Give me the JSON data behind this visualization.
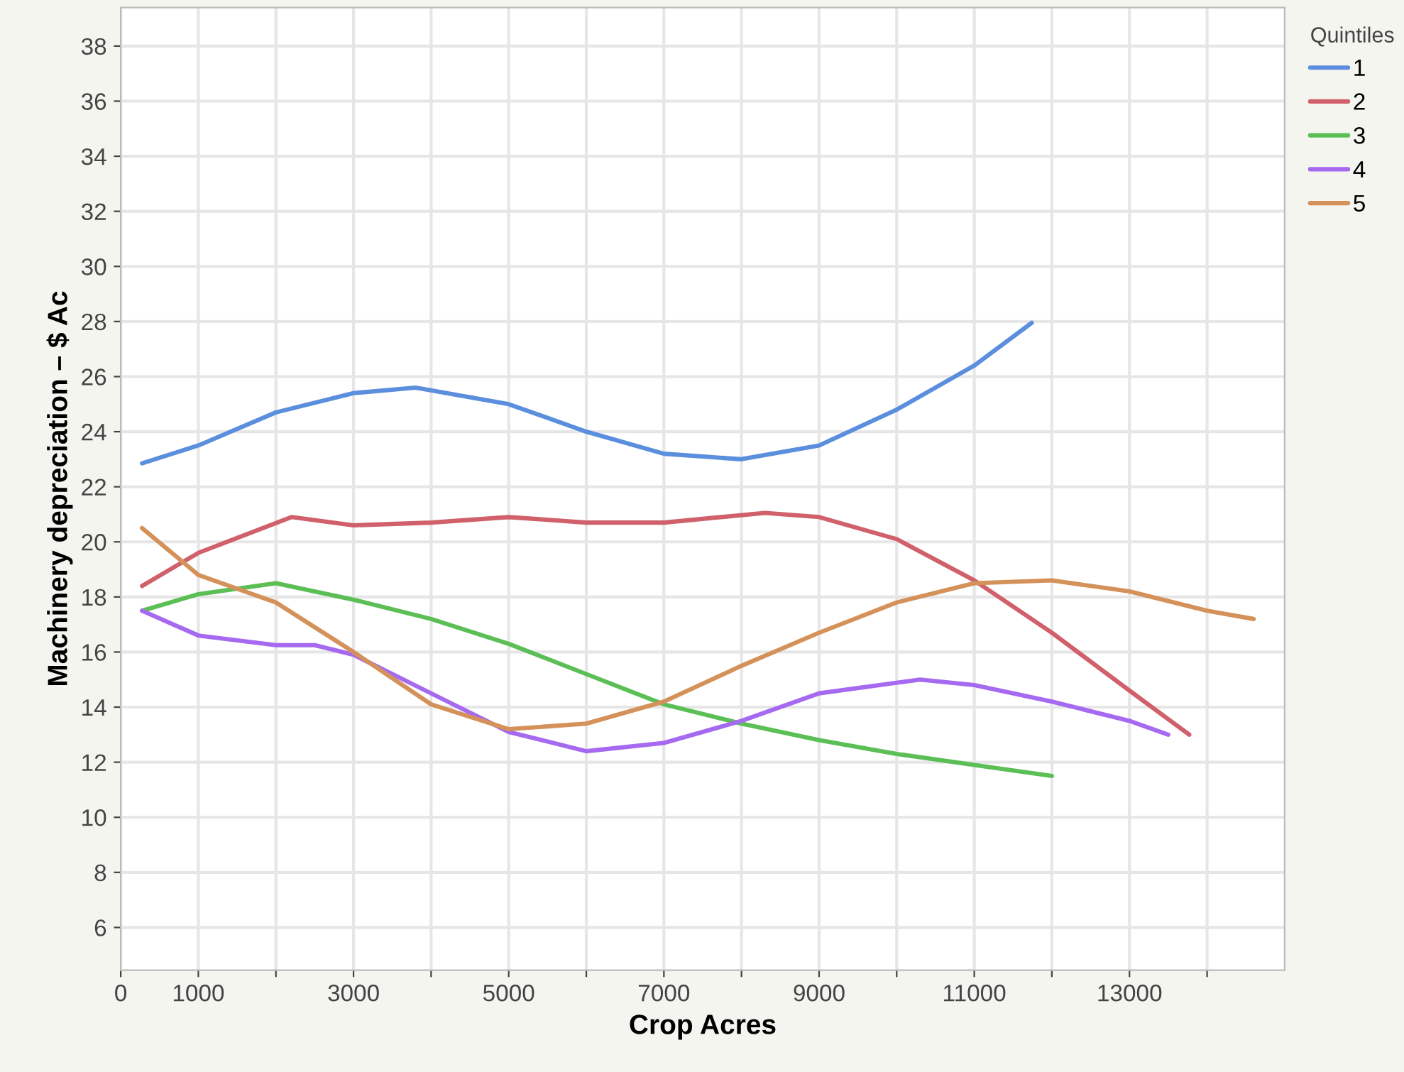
{
  "chart_data": {
    "type": "line",
    "xlabel": "Crop Acres",
    "ylabel": "Machinery depreciation – $ Ac",
    "legend_title": "Quintiles",
    "legend": "top right",
    "grid": true,
    "line_style": "solid",
    "marker": "none",
    "xlim": [
      0,
      15000
    ],
    "ylim": [
      4.45,
      39.4
    ],
    "xticks": [
      0,
      1000,
      {
        "value": 2000,
        "label": null
      },
      3000,
      {
        "value": 4000,
        "label": null
      },
      5000,
      {
        "value": 6000,
        "label": null
      },
      7000,
      {
        "value": 8000,
        "label": null
      },
      9000,
      {
        "value": 10000,
        "label": null
      },
      11000,
      {
        "value": 12000,
        "label": null
      },
      13000,
      {
        "value": 14000,
        "label": null
      }
    ],
    "yticks": [
      6,
      8,
      10,
      12,
      14,
      16,
      18,
      20,
      22,
      24,
      26,
      28,
      30,
      32,
      34,
      36,
      38
    ],
    "series": [
      {
        "name": "1",
        "color": "#5b8fde",
        "x": [
          275,
          1000,
          2000,
          3000,
          3800,
          5000,
          6000,
          7000,
          8000,
          9000,
          10000,
          11000,
          11740
        ],
        "values": [
          22.85,
          23.5,
          24.7,
          25.4,
          25.6,
          25.0,
          24.0,
          23.2,
          23.0,
          23.5,
          24.8,
          26.4,
          27.95
        ]
      },
      {
        "name": "2",
        "color": "#d0606a",
        "x": [
          275,
          1000,
          2200,
          3000,
          4000,
          5000,
          6000,
          7000,
          8300,
          9000,
          10000,
          11000,
          12000,
          13000,
          13770
        ],
        "values": [
          18.4,
          19.6,
          20.9,
          20.6,
          20.7,
          20.9,
          20.7,
          20.7,
          21.05,
          20.9,
          20.1,
          18.6,
          16.7,
          14.6,
          13.0
        ]
      },
      {
        "name": "3",
        "color": "#5cbf56",
        "x": [
          275,
          1000,
          2000,
          3000,
          4000,
          5000,
          6000,
          7000,
          8000,
          9000,
          10000,
          11000,
          12000
        ],
        "values": [
          17.5,
          18.1,
          18.5,
          17.9,
          17.2,
          16.3,
          15.2,
          14.1,
          13.4,
          12.8,
          12.3,
          11.9,
          11.5
        ]
      },
      {
        "name": "4",
        "color": "#a56af0",
        "x": [
          275,
          1000,
          2000,
          2500,
          3000,
          4000,
          5000,
          6000,
          7000,
          8000,
          9000,
          10300,
          11000,
          12000,
          13000,
          13500
        ],
        "values": [
          17.5,
          16.6,
          16.25,
          16.25,
          15.9,
          14.5,
          13.1,
          12.4,
          12.7,
          13.5,
          14.5,
          15.0,
          14.8,
          14.2,
          13.5,
          13.0
        ]
      },
      {
        "name": "5",
        "color": "#d4925a",
        "x": [
          275,
          1000,
          2000,
          3000,
          4000,
          5000,
          6000,
          7000,
          8000,
          9000,
          10000,
          11000,
          12000,
          13000,
          14000,
          14600
        ],
        "values": [
          20.5,
          18.8,
          17.8,
          16.0,
          14.1,
          13.2,
          13.4,
          14.2,
          15.5,
          16.7,
          17.8,
          18.5,
          18.6,
          18.2,
          17.5,
          17.2
        ]
      }
    ]
  }
}
